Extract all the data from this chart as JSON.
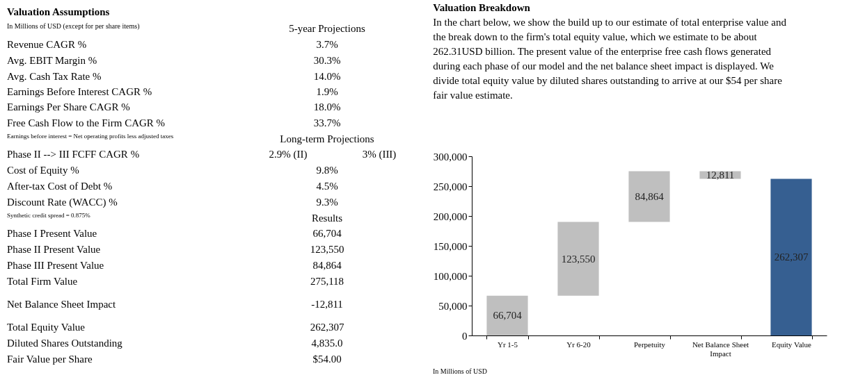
{
  "chart_data": [
    {
      "type": "other",
      "title": "Valuation Assumptions",
      "subtitle": "In Millions of USD (except for per share items)",
      "annotations": [
        "5-year Projections",
        "Revenue CAGR %",
        "3.7%",
        "Avg. EBIT Margin %",
        "30.3%",
        "Avg. Cash Tax Rate %",
        "14.0%",
        "Earnings Before Interest CAGR %",
        "1.9%",
        "Earnings Per Share CAGR %",
        "18.0%",
        "Free Cash Flow to the Firm CAGR %",
        "33.7%",
        "Earnings before interest = Net operating profits less adjusted taxes",
        "Long-term Projections",
        "Phase II --> III FCFF CAGR %",
        "2.9% (II)",
        "3% (III)",
        "Cost of Equity %",
        "9.8%",
        "After-tax Cost of Debt %",
        "4.5%",
        "Discount Rate (WACC) %",
        "9.3%",
        "Synthetic credit spread = 0.875%",
        "Results",
        "Phase I Present Value",
        "66,704",
        "Phase II Present Value",
        "123,550",
        "Phase III Present Value",
        "84,864",
        "Total Firm Value",
        "275,118",
        "Net Balance Sheet Impact",
        "-12,811",
        "Total Equity Value",
        "262,307",
        "Diluted Shares Outstanding",
        "4,835.0",
        "Fair Value per Share",
        "$54.00"
      ]
    },
    {
      "type": "bar",
      "title": "Valuation Breakdown",
      "subtitle": "In the chart below, we show the build up to our estimate of total enterprise value and the break down to the firm's total equity value, which we estimate to be about 262.31USD billion. The present value of the enterprise free cash flows generated during each phase of our model and the net balance sheet impact is displayed. We divide total equity value by diluted shares outstanding to arrive at our $54 per share fair value estimate.",
      "categories": [
        "Yr 1-5",
        "Yr 6-20",
        "Perpetuity",
        "Net Balance Sheet Impact",
        "Equity Value"
      ],
      "values": [
        66704,
        123550,
        84864,
        -12811,
        262307
      ],
      "base": [
        0,
        66704,
        190254,
        275118,
        0
      ],
      "colors": [
        "#bfbfbf",
        "#bfbfbf",
        "#bfbfbf",
        "#bfbfbf",
        "#365f91"
      ],
      "value_labels": [
        "66,704",
        "123,550",
        "84,864",
        "12,811",
        "262,307"
      ],
      "ylim": [
        0,
        300000
      ],
      "yticks": [
        0,
        {
          "value": 50000,
          "label": "50,000"
        },
        {
          "value": 100000,
          "label": "100,000"
        },
        {
          "value": 150000,
          "label": "150,000"
        },
        {
          "value": 200000,
          "label": "200,000"
        },
        {
          "value": 250000,
          "label": "250,000"
        },
        {
          "value": 300000,
          "label": "300,000"
        }
      ],
      "grid": false,
      "legend": false,
      "annotations": [
        "In Millions of USD"
      ]
    }
  ]
}
